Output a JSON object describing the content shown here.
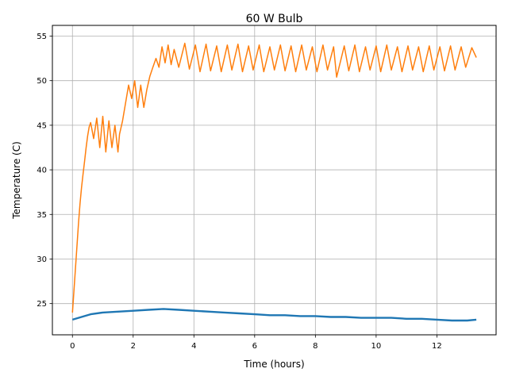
{
  "chart_data": {
    "type": "line",
    "title": "60 W Bulb",
    "xlabel": "Time (hours)",
    "ylabel": "Temperature (C)",
    "xlim": [
      -0.66,
      13.95
    ],
    "ylim": [
      21.5,
      56.2
    ],
    "xticks": [
      0,
      2,
      4,
      6,
      8,
      10,
      12
    ],
    "yticks": [
      25,
      30,
      35,
      40,
      45,
      50,
      55
    ],
    "grid": true,
    "series": [
      {
        "color": "#1f77b4",
        "points": [
          [
            0,
            23.2
          ],
          [
            0.3,
            23.5
          ],
          [
            0.6,
            23.8
          ],
          [
            1.0,
            24.0
          ],
          [
            1.5,
            24.1
          ],
          [
            2.0,
            24.2
          ],
          [
            2.5,
            24.3
          ],
          [
            3.0,
            24.4
          ],
          [
            3.5,
            24.3
          ],
          [
            4.0,
            24.2
          ],
          [
            4.5,
            24.1
          ],
          [
            5.0,
            24.0
          ],
          [
            5.5,
            23.9
          ],
          [
            6.0,
            23.8
          ],
          [
            6.5,
            23.7
          ],
          [
            7.0,
            23.7
          ],
          [
            7.5,
            23.6
          ],
          [
            8.0,
            23.6
          ],
          [
            8.5,
            23.5
          ],
          [
            9.0,
            23.5
          ],
          [
            9.5,
            23.4
          ],
          [
            10.0,
            23.4
          ],
          [
            10.5,
            23.4
          ],
          [
            11.0,
            23.3
          ],
          [
            11.5,
            23.3
          ],
          [
            12.0,
            23.2
          ],
          [
            12.5,
            23.1
          ],
          [
            13.0,
            23.1
          ],
          [
            13.3,
            23.2
          ]
        ]
      },
      {
        "color": "#ff7f0e",
        "points": [
          [
            0,
            24.0
          ],
          [
            0.05,
            26.5
          ],
          [
            0.1,
            29.0
          ],
          [
            0.15,
            31.5
          ],
          [
            0.2,
            34.0
          ],
          [
            0.25,
            36.2
          ],
          [
            0.3,
            38.0
          ],
          [
            0.35,
            39.5
          ],
          [
            0.4,
            41.0
          ],
          [
            0.45,
            42.5
          ],
          [
            0.5,
            43.8
          ],
          [
            0.55,
            44.8
          ],
          [
            0.6,
            45.3
          ],
          [
            0.7,
            43.5
          ],
          [
            0.8,
            45.8
          ],
          [
            0.9,
            42.5
          ],
          [
            1.0,
            46.0
          ],
          [
            1.1,
            42.0
          ],
          [
            1.2,
            45.5
          ],
          [
            1.3,
            42.5
          ],
          [
            1.4,
            45.0
          ],
          [
            1.5,
            42.0
          ],
          [
            1.55,
            44.0
          ],
          [
            1.65,
            45.5
          ],
          [
            1.75,
            47.5
          ],
          [
            1.85,
            49.5
          ],
          [
            1.95,
            48.0
          ],
          [
            2.05,
            50.0
          ],
          [
            2.15,
            47.0
          ],
          [
            2.25,
            49.5
          ],
          [
            2.35,
            47.0
          ],
          [
            2.45,
            49.0
          ],
          [
            2.55,
            50.5
          ],
          [
            2.65,
            51.5
          ],
          [
            2.75,
            52.5
          ],
          [
            2.85,
            51.5
          ],
          [
            2.95,
            53.8
          ],
          [
            3.05,
            52.0
          ],
          [
            3.15,
            54.0
          ],
          [
            3.25,
            51.8
          ],
          [
            3.35,
            53.5
          ],
          [
            3.5,
            51.5
          ],
          [
            3.7,
            54.2
          ],
          [
            3.85,
            51.3
          ],
          [
            4.05,
            54.0
          ],
          [
            4.2,
            51.0
          ],
          [
            4.4,
            54.1
          ],
          [
            4.55,
            51.1
          ],
          [
            4.75,
            53.9
          ],
          [
            4.9,
            51.0
          ],
          [
            5.1,
            54.0
          ],
          [
            5.25,
            51.2
          ],
          [
            5.45,
            54.1
          ],
          [
            5.6,
            51.0
          ],
          [
            5.8,
            53.9
          ],
          [
            5.95,
            51.2
          ],
          [
            6.15,
            54.0
          ],
          [
            6.3,
            51.0
          ],
          [
            6.5,
            53.8
          ],
          [
            6.65,
            51.2
          ],
          [
            6.85,
            54.0
          ],
          [
            7.0,
            51.1
          ],
          [
            7.2,
            53.9
          ],
          [
            7.35,
            51.0
          ],
          [
            7.55,
            54.0
          ],
          [
            7.7,
            51.2
          ],
          [
            7.9,
            53.8
          ],
          [
            8.05,
            51.0
          ],
          [
            8.25,
            54.0
          ],
          [
            8.4,
            51.2
          ],
          [
            8.6,
            53.8
          ],
          [
            8.7,
            50.4
          ],
          [
            8.95,
            53.9
          ],
          [
            9.1,
            51.1
          ],
          [
            9.3,
            54.0
          ],
          [
            9.45,
            51.0
          ],
          [
            9.65,
            53.8
          ],
          [
            9.8,
            51.2
          ],
          [
            10.0,
            53.9
          ],
          [
            10.15,
            51.0
          ],
          [
            10.35,
            54.0
          ],
          [
            10.5,
            51.2
          ],
          [
            10.7,
            53.8
          ],
          [
            10.85,
            51.0
          ],
          [
            11.05,
            53.9
          ],
          [
            11.2,
            51.2
          ],
          [
            11.4,
            53.8
          ],
          [
            11.55,
            51.0
          ],
          [
            11.75,
            53.9
          ],
          [
            11.9,
            51.2
          ],
          [
            12.1,
            53.8
          ],
          [
            12.25,
            51.1
          ],
          [
            12.45,
            53.9
          ],
          [
            12.6,
            51.2
          ],
          [
            12.8,
            53.8
          ],
          [
            12.95,
            51.5
          ],
          [
            13.15,
            53.7
          ],
          [
            13.3,
            52.6
          ]
        ]
      }
    ]
  }
}
